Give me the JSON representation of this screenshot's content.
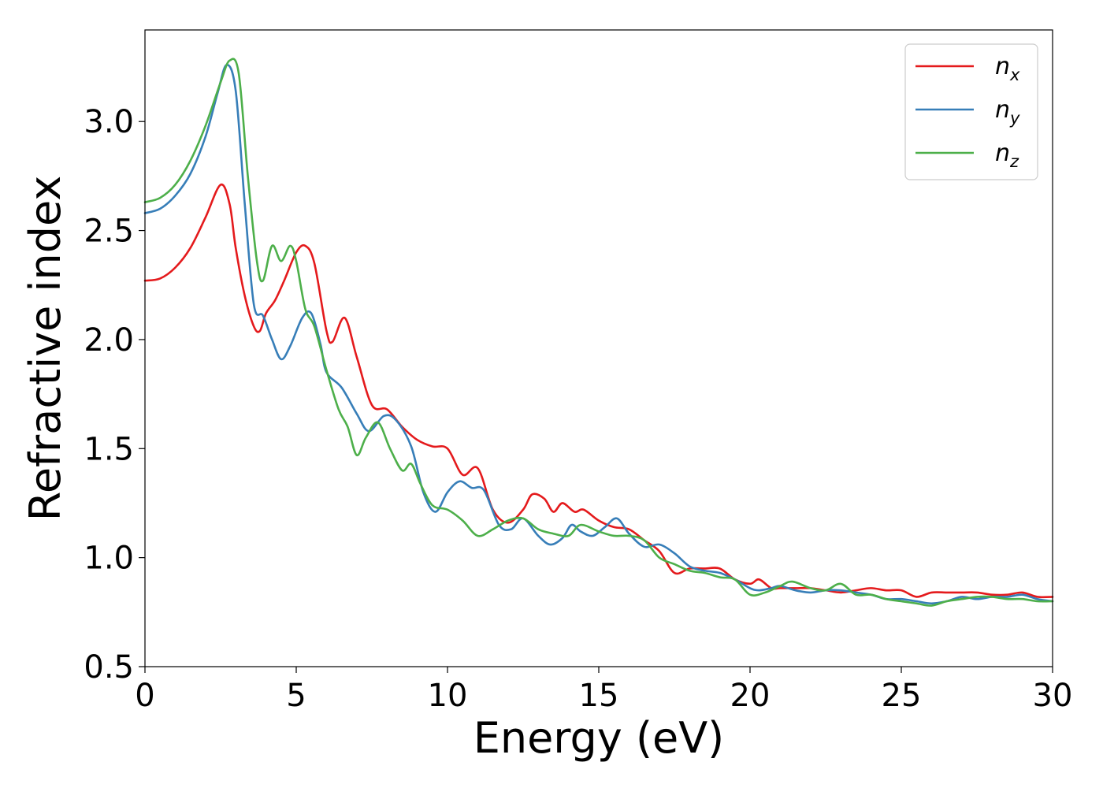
{
  "chart_data": {
    "type": "line",
    "title": "",
    "xlabel": "Energy (eV)",
    "ylabel": "Refractive index",
    "xlim": [
      0,
      30
    ],
    "ylim": [
      0.5,
      3.42
    ],
    "xticks": [
      "0",
      "5",
      "10",
      "15",
      "20",
      "25",
      "30"
    ],
    "yticks": [
      "0.5",
      "1.0",
      "1.5",
      "2.0",
      "2.5",
      "3.0"
    ],
    "grid": false,
    "legend_position": "top-right",
    "series": [
      {
        "name": "nx",
        "label_base": "n",
        "label_sub": "x",
        "color": "#e41a1c",
        "x": [
          0,
          0.5,
          1.0,
          1.5,
          2.0,
          2.5,
          2.8,
          3.0,
          3.3,
          3.6,
          3.8,
          4.0,
          4.3,
          4.6,
          5.0,
          5.3,
          5.6,
          6.0,
          6.2,
          6.6,
          7.0,
          7.5,
          8.0,
          8.5,
          9.0,
          9.5,
          10.0,
          10.5,
          11.0,
          11.5,
          12.0,
          12.5,
          12.8,
          13.2,
          13.5,
          13.8,
          14.2,
          14.5,
          15.0,
          15.5,
          16.0,
          16.5,
          17.0,
          17.5,
          18.0,
          18.5,
          19.0,
          19.5,
          20.0,
          20.3,
          20.7,
          21.0,
          21.5,
          22.0,
          22.5,
          23.0,
          23.5,
          24.0,
          24.5,
          25.0,
          25.5,
          26.0,
          26.5,
          27.0,
          27.5,
          28.0,
          28.5,
          29.0,
          29.5,
          30.0
        ],
        "y": [
          2.27,
          2.28,
          2.33,
          2.42,
          2.56,
          2.71,
          2.62,
          2.42,
          2.2,
          2.06,
          2.04,
          2.12,
          2.18,
          2.27,
          2.4,
          2.43,
          2.35,
          2.04,
          1.99,
          2.1,
          1.92,
          1.7,
          1.68,
          1.6,
          1.54,
          1.51,
          1.5,
          1.38,
          1.41,
          1.22,
          1.16,
          1.22,
          1.29,
          1.27,
          1.21,
          1.25,
          1.21,
          1.22,
          1.17,
          1.14,
          1.13,
          1.08,
          1.03,
          0.93,
          0.95,
          0.95,
          0.95,
          0.9,
          0.88,
          0.9,
          0.86,
          0.86,
          0.86,
          0.86,
          0.85,
          0.84,
          0.85,
          0.86,
          0.85,
          0.85,
          0.82,
          0.84,
          0.84,
          0.84,
          0.84,
          0.83,
          0.83,
          0.84,
          0.82,
          0.82
        ]
      },
      {
        "name": "ny",
        "label_base": "n",
        "label_sub": "y",
        "color": "#377eb8",
        "x": [
          0,
          0.5,
          1.0,
          1.5,
          2.0,
          2.4,
          2.7,
          3.0,
          3.3,
          3.6,
          3.9,
          4.2,
          4.5,
          4.8,
          5.2,
          5.5,
          5.8,
          6.0,
          6.5,
          7.0,
          7.4,
          7.9,
          8.3,
          8.8,
          9.2,
          9.6,
          10.0,
          10.4,
          10.8,
          11.2,
          11.7,
          12.1,
          12.5,
          13.0,
          13.4,
          13.8,
          14.1,
          14.4,
          14.8,
          15.2,
          15.6,
          16.0,
          16.5,
          17.0,
          17.5,
          18.0,
          18.5,
          19.0,
          19.5,
          20.0,
          20.3,
          20.7,
          21.0,
          21.5,
          22.0,
          22.5,
          23.0,
          23.5,
          24.0,
          24.5,
          25.0,
          25.5,
          26.0,
          26.5,
          27.0,
          27.5,
          28.0,
          28.5,
          29.0,
          29.5,
          30.0
        ],
        "y": [
          2.58,
          2.6,
          2.66,
          2.76,
          2.93,
          3.13,
          3.26,
          3.14,
          2.62,
          2.16,
          2.11,
          2.0,
          1.91,
          1.97,
          2.1,
          2.12,
          1.98,
          1.85,
          1.78,
          1.66,
          1.58,
          1.65,
          1.63,
          1.51,
          1.3,
          1.21,
          1.3,
          1.35,
          1.32,
          1.31,
          1.15,
          1.13,
          1.18,
          1.1,
          1.06,
          1.09,
          1.15,
          1.12,
          1.1,
          1.14,
          1.18,
          1.11,
          1.05,
          1.06,
          1.02,
          0.96,
          0.94,
          0.93,
          0.9,
          0.86,
          0.85,
          0.86,
          0.87,
          0.85,
          0.84,
          0.85,
          0.85,
          0.84,
          0.83,
          0.81,
          0.81,
          0.8,
          0.79,
          0.8,
          0.82,
          0.81,
          0.82,
          0.82,
          0.83,
          0.81,
          0.8
        ]
      },
      {
        "name": "nz",
        "label_base": "n",
        "label_sub": "z",
        "color": "#4daf4a",
        "x": [
          0,
          0.5,
          1.0,
          1.5,
          2.0,
          2.5,
          2.8,
          3.1,
          3.4,
          3.7,
          3.9,
          4.2,
          4.5,
          4.8,
          5.0,
          5.3,
          5.6,
          6.0,
          6.4,
          6.7,
          7.0,
          7.3,
          7.7,
          8.1,
          8.5,
          8.8,
          9.1,
          9.5,
          10.0,
          10.5,
          11.0,
          11.5,
          12.0,
          12.5,
          13.0,
          13.5,
          14.0,
          14.4,
          15.0,
          15.5,
          16.0,
          16.5,
          17.0,
          17.5,
          18.0,
          18.5,
          19.0,
          19.5,
          20.0,
          20.5,
          21.0,
          21.4,
          22.0,
          22.5,
          23.0,
          23.5,
          24.0,
          24.5,
          25.0,
          25.5,
          26.0,
          26.5,
          27.0,
          27.5,
          28.0,
          28.5,
          29.0,
          29.5,
          30.0
        ],
        "y": [
          2.63,
          2.65,
          2.71,
          2.82,
          2.98,
          3.18,
          3.28,
          3.22,
          2.75,
          2.36,
          2.27,
          2.43,
          2.36,
          2.43,
          2.36,
          2.14,
          2.06,
          1.86,
          1.68,
          1.6,
          1.47,
          1.55,
          1.62,
          1.5,
          1.4,
          1.43,
          1.34,
          1.24,
          1.22,
          1.17,
          1.1,
          1.13,
          1.17,
          1.18,
          1.13,
          1.11,
          1.1,
          1.15,
          1.12,
          1.1,
          1.1,
          1.08,
          1.0,
          0.97,
          0.94,
          0.93,
          0.91,
          0.9,
          0.83,
          0.84,
          0.87,
          0.89,
          0.86,
          0.85,
          0.88,
          0.83,
          0.83,
          0.81,
          0.8,
          0.79,
          0.78,
          0.8,
          0.81,
          0.82,
          0.82,
          0.81,
          0.81,
          0.8,
          0.8
        ]
      }
    ]
  }
}
